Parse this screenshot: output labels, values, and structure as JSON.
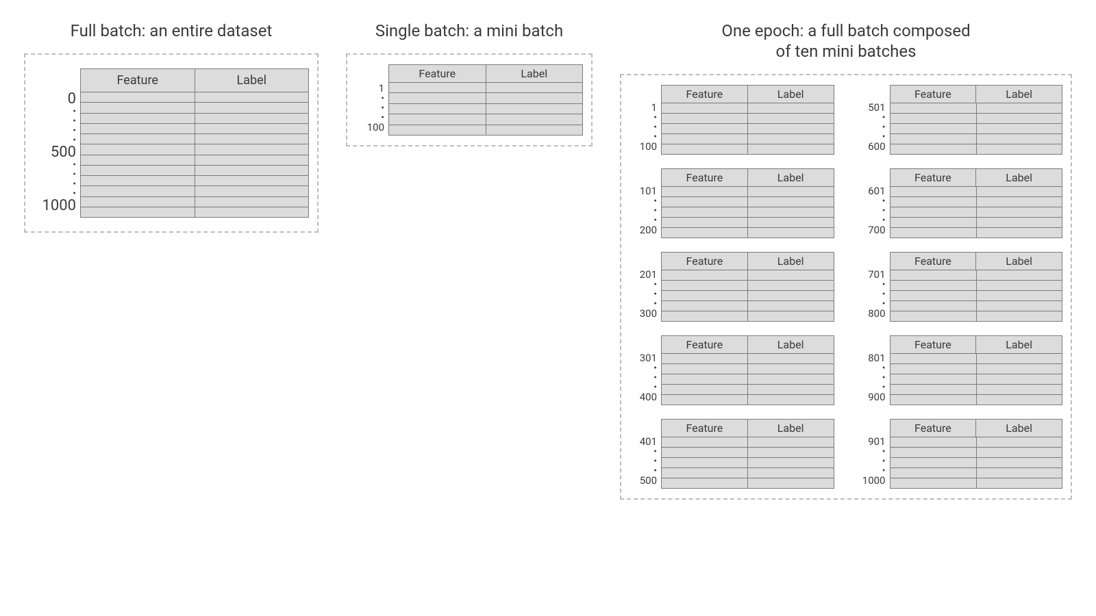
{
  "type": "infographic",
  "background_color": "#ffffff",
  "text_color": "#3a3a3a",
  "table_fill": "#dcdcdc",
  "table_border": "#7a7a7a",
  "dash_border": "#bdbdbd",
  "title_fontsize": 24,
  "header_fontsize": 18,
  "label_fontsize": 18,
  "columns": [
    "Feature",
    "Label"
  ],
  "full": {
    "title": "Full batch: an entire dataset",
    "row_labels": [
      "0",
      "•",
      "•",
      "•",
      "•",
      "500",
      "",
      "•",
      "•",
      "•",
      "•",
      "1000"
    ],
    "n_rows": 12
  },
  "mini": {
    "title": "Single batch: a mini batch",
    "row_labels": [
      "1",
      "•",
      "•",
      "•",
      "100"
    ],
    "n_rows": 5
  },
  "epoch": {
    "title": "One epoch: a full batch composed\nof ten mini batches",
    "batches": [
      {
        "row_labels": [
          "1",
          "•",
          "•",
          "•",
          "100"
        ]
      },
      {
        "row_labels": [
          "101",
          "•",
          "•",
          "•",
          "200"
        ]
      },
      {
        "row_labels": [
          "201",
          "•",
          "•",
          "•",
          "300"
        ]
      },
      {
        "row_labels": [
          "301",
          "•",
          "•",
          "•",
          "400"
        ]
      },
      {
        "row_labels": [
          "401",
          "•",
          "•",
          "•",
          "500"
        ]
      },
      {
        "row_labels": [
          "501",
          "•",
          "•",
          "•",
          "600"
        ]
      },
      {
        "row_labels": [
          "601",
          "•",
          "•",
          "•",
          "700"
        ]
      },
      {
        "row_labels": [
          "701",
          "•",
          "•",
          "•",
          "800"
        ]
      },
      {
        "row_labels": [
          "801",
          "•",
          "•",
          "•",
          "900"
        ]
      },
      {
        "row_labels": [
          "901",
          "•",
          "•",
          "•",
          "1000"
        ]
      }
    ],
    "n_rows": 5
  }
}
